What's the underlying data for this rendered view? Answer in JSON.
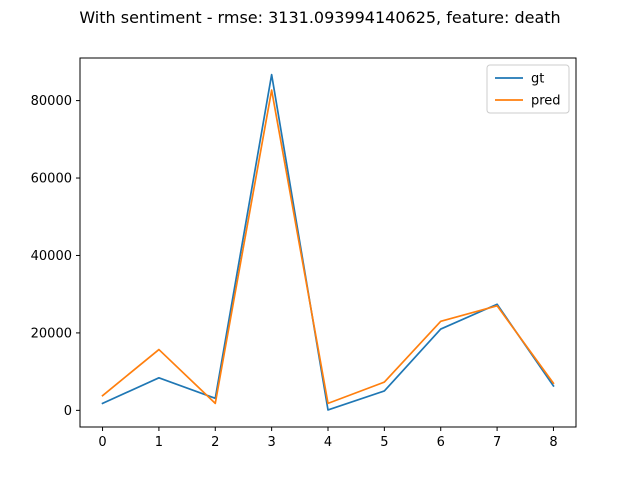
{
  "chart_data": {
    "type": "line",
    "title": "With sentiment - rmse: 3131.093994140625, feature: death",
    "xlabel": "",
    "ylabel": "",
    "x": [
      0,
      1,
      2,
      3,
      4,
      5,
      6,
      7,
      8
    ],
    "xticks": [
      "0",
      "1",
      "2",
      "3",
      "4",
      "5",
      "6",
      "7",
      "8"
    ],
    "yticks": [
      "0",
      "20000",
      "40000",
      "60000",
      "80000"
    ],
    "xlim": [
      -0.4,
      8.4
    ],
    "ylim": [
      -4300,
      91000
    ],
    "grid": false,
    "legend_position": "upper right",
    "series": [
      {
        "name": "gt",
        "color": "#1f77b4",
        "values": [
          1800,
          8400,
          3100,
          86700,
          100,
          5000,
          21000,
          27400,
          6300
        ]
      },
      {
        "name": "pred",
        "color": "#ff7f0e",
        "values": [
          3800,
          15700,
          1800,
          82700,
          1800,
          7300,
          23000,
          27000,
          7000
        ]
      }
    ]
  }
}
